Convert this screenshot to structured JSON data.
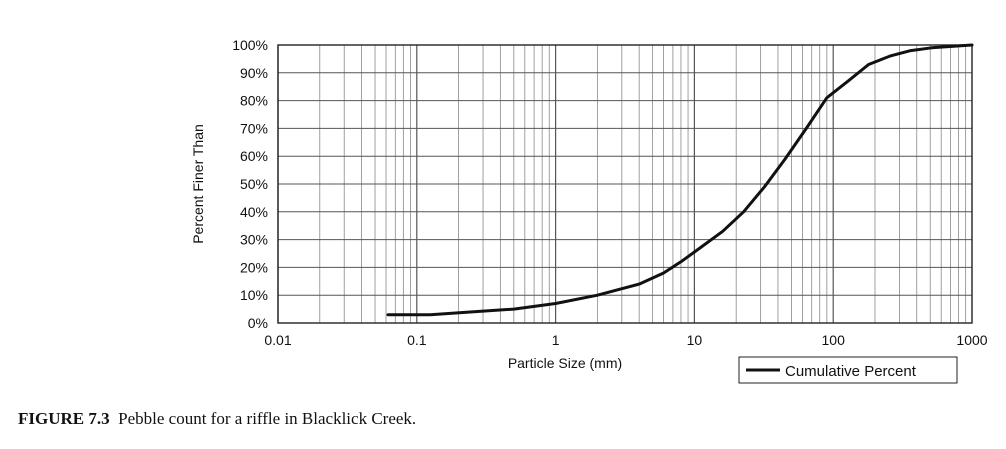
{
  "chart_data": {
    "type": "line",
    "xlabel": "Particle Size (mm)",
    "ylabel": "Percent Finer Than",
    "xscale": "log",
    "xlim": [
      0.01,
      1000
    ],
    "ylim": [
      0,
      100
    ],
    "grid": true,
    "legend_position": "bottom-right",
    "x_tick_labels": [
      "0.01",
      "0.1",
      "1",
      "10",
      "100",
      "1000"
    ],
    "y_tick_labels": [
      "0%",
      "10%",
      "20%",
      "30%",
      "40%",
      "50%",
      "60%",
      "70%",
      "80%",
      "90%",
      "100%"
    ],
    "series": [
      {
        "name": "Cumulative Percent",
        "color": "#111111",
        "x": [
          0.062,
          0.125,
          0.25,
          0.5,
          1,
          2,
          4,
          6,
          8,
          11,
          16,
          22.6,
          32,
          45,
          64,
          90,
          128,
          180,
          256,
          362,
          512,
          1000
        ],
        "y": [
          3,
          3,
          4,
          5,
          7,
          10,
          14,
          18,
          22,
          27,
          33,
          40,
          49,
          59,
          70,
          81,
          87,
          93,
          96,
          98,
          99,
          100
        ]
      }
    ]
  },
  "caption": {
    "label": "FIGURE 7.3",
    "text": "Pebble count for a riffle in Blacklick Creek."
  }
}
